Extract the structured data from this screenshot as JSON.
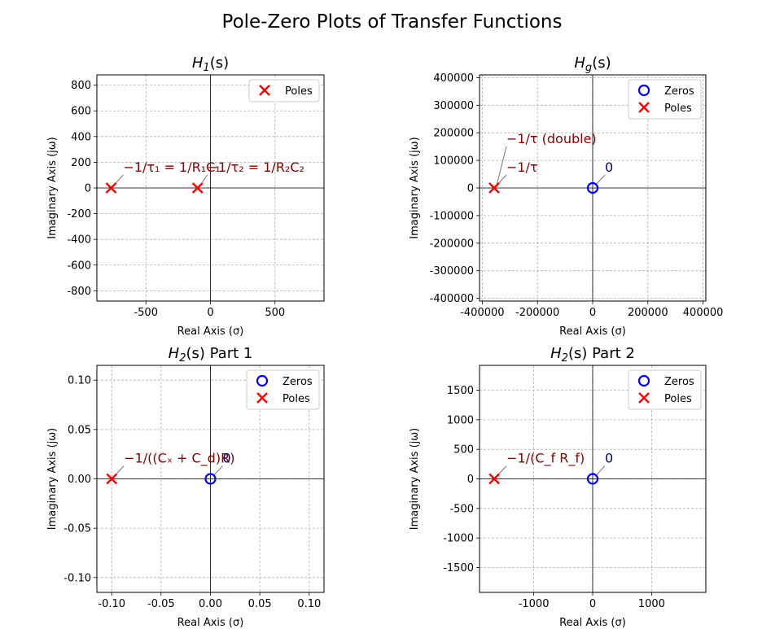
{
  "figure": {
    "suptitle": "Pole-Zero Plots of Transfer Functions",
    "colors": {
      "zero": "#0000ff",
      "pole": "#ff0000",
      "annotation": "#8b0000",
      "zero_annotation": "#00008b",
      "grid": "#b0b0b0",
      "axis_line": "#000000"
    }
  },
  "chart_data": [
    {
      "type": "scatter",
      "title": "H1(s)",
      "title_parts": [
        "H",
        "1",
        "(s)"
      ],
      "xlabel": "Real Axis (σ)",
      "ylabel": "Imaginary Axis (jω)",
      "xlim": [
        -880,
        880
      ],
      "ylim": [
        -880,
        880
      ],
      "xticks": [
        -500,
        0,
        500
      ],
      "xtick_labels": [
        "-500",
        "0",
        "500"
      ],
      "yticks": [
        -800,
        -600,
        -400,
        -200,
        0,
        200,
        400,
        600,
        800
      ],
      "ytick_labels": [
        "-800",
        "-600",
        "-400",
        "-200",
        "0",
        "200",
        "400",
        "600",
        "800"
      ],
      "grid": true,
      "legend": {
        "placement": "upper-right",
        "entries": [
          "Poles"
        ]
      },
      "series": [
        {
          "name": "Poles",
          "marker": "x",
          "points": [
            [
              -770,
              0
            ],
            [
              -100,
              0
            ]
          ]
        }
      ],
      "annotations": [
        {
          "text": "−1/τ₁ = 1/R₁C₁",
          "kind": "pole",
          "at": [
            -770,
            0
          ]
        },
        {
          "text": "−1/τ₂ = 1/R₂C₂",
          "kind": "pole",
          "at": [
            -100,
            0
          ]
        }
      ]
    },
    {
      "type": "scatter",
      "title": "Hg(s)",
      "title_parts": [
        "H",
        "g",
        "(s)"
      ],
      "xlabel": "Real Axis (σ)",
      "ylabel": "Imaginary Axis (jω)",
      "xlim": [
        -410000,
        410000
      ],
      "ylim": [
        -410000,
        410000
      ],
      "xticks": [
        -400000,
        -200000,
        0,
        200000,
        400000
      ],
      "xtick_labels": [
        "-400000",
        "-200000",
        "0",
        "200000",
        "400000"
      ],
      "yticks": [
        -400000,
        -300000,
        -200000,
        -100000,
        0,
        100000,
        200000,
        300000,
        400000
      ],
      "ytick_labels": [
        "-400000",
        "-300000",
        "-200000",
        "-100000",
        "0",
        "100000",
        "200000",
        "300000",
        "400000"
      ],
      "grid": true,
      "legend": {
        "placement": "upper-right",
        "entries": [
          "Zeros",
          "Poles"
        ]
      },
      "series": [
        {
          "name": "Zeros",
          "marker": "o",
          "points": [
            [
              0,
              0
            ]
          ]
        },
        {
          "name": "Poles",
          "marker": "x",
          "points": [
            [
              -357000,
              0
            ]
          ]
        }
      ],
      "annotations": [
        {
          "text": "0",
          "kind": "zero",
          "at": [
            0,
            0
          ]
        },
        {
          "text": "−1/τ (double)",
          "kind": "pole",
          "at": [
            -357000,
            0
          ]
        },
        {
          "text": "−1/τ",
          "kind": "pole",
          "at": [
            -357000,
            0
          ]
        }
      ]
    },
    {
      "type": "scatter",
      "title": "H2(s) Part 1",
      "title_parts": [
        "H",
        "2",
        "(s) Part 1"
      ],
      "xlabel": "Real Axis (σ)",
      "ylabel": "Imaginary Axis (jω)",
      "xlim": [
        -0.115,
        0.115
      ],
      "ylim": [
        -0.115,
        0.115
      ],
      "xticks": [
        -0.1,
        -0.05,
        0,
        0.05,
        0.1
      ],
      "xtick_labels": [
        "-0.10",
        "-0.05",
        "0.00",
        "0.05",
        "0.10"
      ],
      "yticks": [
        -0.1,
        -0.05,
        0,
        0.05,
        0.1
      ],
      "ytick_labels": [
        "-0.10",
        "-0.05",
        "0.00",
        "0.05",
        "0.10"
      ],
      "grid": true,
      "legend": {
        "placement": "upper-right",
        "entries": [
          "Zeros",
          "Poles"
        ]
      },
      "series": [
        {
          "name": "Zeros",
          "marker": "o",
          "points": [
            [
              0,
              0
            ]
          ]
        },
        {
          "name": "Poles",
          "marker": "x",
          "points": [
            [
              -0.1,
              0
            ]
          ]
        }
      ],
      "annotations": [
        {
          "text": "−1/((Cₓ + C_d)R)",
          "kind": "pole",
          "at": [
            -0.1,
            0
          ]
        },
        {
          "text": "0",
          "kind": "zero",
          "at": [
            0,
            0
          ]
        }
      ]
    },
    {
      "type": "scatter",
      "title": "H2(s) Part 2",
      "title_parts": [
        "H",
        "2",
        "(s) Part 2"
      ],
      "xlabel": "Real Axis (σ)",
      "ylabel": "Imaginary Axis (jω)",
      "xlim": [
        -1920,
        1920
      ],
      "ylim": [
        -1920,
        1920
      ],
      "xticks": [
        -1000,
        0,
        1000
      ],
      "xtick_labels": [
        "-1000",
        "0",
        "1000"
      ],
      "yticks": [
        -1500,
        -1000,
        -500,
        0,
        500,
        1000,
        1500
      ],
      "ytick_labels": [
        "-1500",
        "-1000",
        "-500",
        "0",
        "500",
        "1000",
        "1500"
      ],
      "grid": true,
      "legend": {
        "placement": "upper-right",
        "entries": [
          "Zeros",
          "Poles"
        ]
      },
      "series": [
        {
          "name": "Zeros",
          "marker": "o",
          "points": [
            [
              0,
              0
            ]
          ]
        },
        {
          "name": "Poles",
          "marker": "x",
          "points": [
            [
              -1670,
              0
            ]
          ]
        }
      ],
      "annotations": [
        {
          "text": "−1/(C_f R_f)",
          "kind": "pole",
          "at": [
            -1670,
            0
          ]
        },
        {
          "text": "0",
          "kind": "zero",
          "at": [
            0,
            0
          ]
        }
      ]
    }
  ]
}
